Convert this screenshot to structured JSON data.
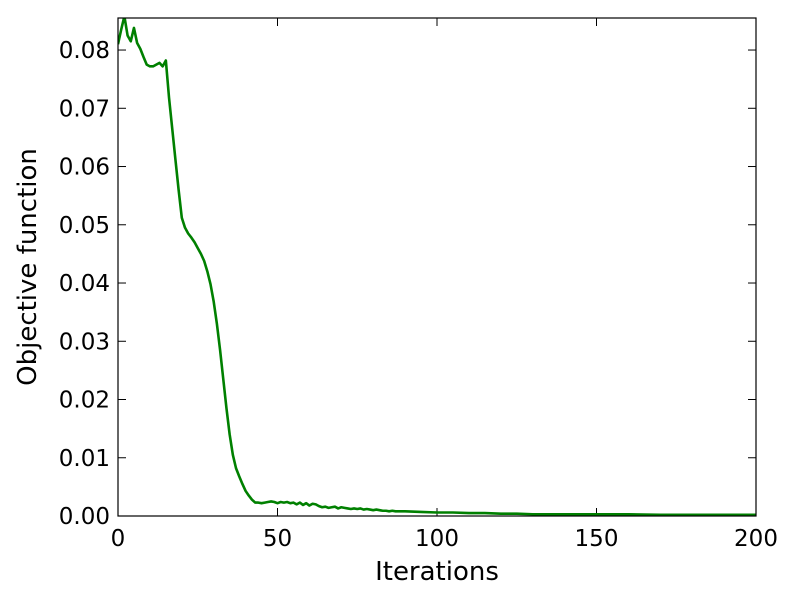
{
  "chart_data": {
    "type": "line",
    "title": "",
    "xlabel": "Iterations",
    "ylabel": "Objective function",
    "xlim": [
      0,
      200
    ],
    "ylim": [
      0,
      0.0855
    ],
    "xticks": [
      0,
      50,
      100,
      150,
      200
    ],
    "xtick_labels": [
      "0",
      "50",
      "100",
      "150",
      "200"
    ],
    "yticks": [
      0,
      0.01,
      0.02,
      0.03,
      0.04,
      0.05,
      0.06,
      0.07,
      0.08
    ],
    "ytick_labels": [
      "0.00",
      "0.01",
      "0.02",
      "0.03",
      "0.04",
      "0.05",
      "0.06",
      "0.07",
      "0.08"
    ],
    "grid": false,
    "legend": "none",
    "series": [
      {
        "color": "#008000",
        "x": [
          0,
          1,
          2,
          3,
          4,
          5,
          6,
          7,
          8,
          9,
          10,
          11,
          12,
          13,
          14,
          15,
          16,
          17,
          18,
          19,
          20,
          21,
          22,
          23,
          24,
          25,
          26,
          27,
          28,
          29,
          30,
          31,
          32,
          33,
          34,
          35,
          36,
          37,
          38,
          39,
          40,
          41,
          42,
          43,
          44,
          45,
          46,
          47,
          48,
          49,
          50,
          51,
          52,
          53,
          54,
          55,
          56,
          57,
          58,
          59,
          60,
          61,
          62,
          63,
          64,
          65,
          66,
          67,
          68,
          69,
          70,
          71,
          72,
          73,
          74,
          75,
          76,
          77,
          78,
          79,
          80,
          81,
          82,
          83,
          84,
          85,
          86,
          87,
          88,
          89,
          90,
          95,
          100,
          105,
          110,
          115,
          120,
          125,
          130,
          140,
          150,
          160,
          170,
          180,
          190,
          200
        ],
        "y": [
          0.081,
          0.0835,
          0.0858,
          0.0825,
          0.0815,
          0.0838,
          0.0812,
          0.0802,
          0.0788,
          0.0775,
          0.0772,
          0.0772,
          0.0775,
          0.0778,
          0.0772,
          0.0782,
          0.0718,
          0.0665,
          0.0612,
          0.056,
          0.0512,
          0.0495,
          0.0485,
          0.0478,
          0.047,
          0.046,
          0.045,
          0.0438,
          0.042,
          0.0398,
          0.0368,
          0.033,
          0.0285,
          0.0235,
          0.0185,
          0.014,
          0.0105,
          0.0082,
          0.0068,
          0.0055,
          0.0043,
          0.0035,
          0.0028,
          0.0023,
          0.0023,
          0.0022,
          0.0023,
          0.0024,
          0.0025,
          0.0024,
          0.0022,
          0.0024,
          0.0023,
          0.0024,
          0.0022,
          0.0023,
          0.002,
          0.0023,
          0.0019,
          0.0022,
          0.0018,
          0.0021,
          0.002,
          0.0017,
          0.0015,
          0.0016,
          0.0014,
          0.0015,
          0.0016,
          0.0013,
          0.0015,
          0.0014,
          0.0013,
          0.0012,
          0.0013,
          0.0012,
          0.0013,
          0.0011,
          0.0012,
          0.0011,
          0.001,
          0.0011,
          0.001,
          0.0009,
          0.0009,
          0.0008,
          0.0009,
          0.0008,
          0.0008,
          0.0008,
          0.0008,
          0.0007,
          0.0006,
          0.0006,
          0.0005,
          0.0005,
          0.0004,
          0.0004,
          0.0003,
          0.0003,
          0.0003,
          0.0003,
          0.0002,
          0.0002,
          0.0002,
          0.0002
        ]
      }
    ]
  }
}
